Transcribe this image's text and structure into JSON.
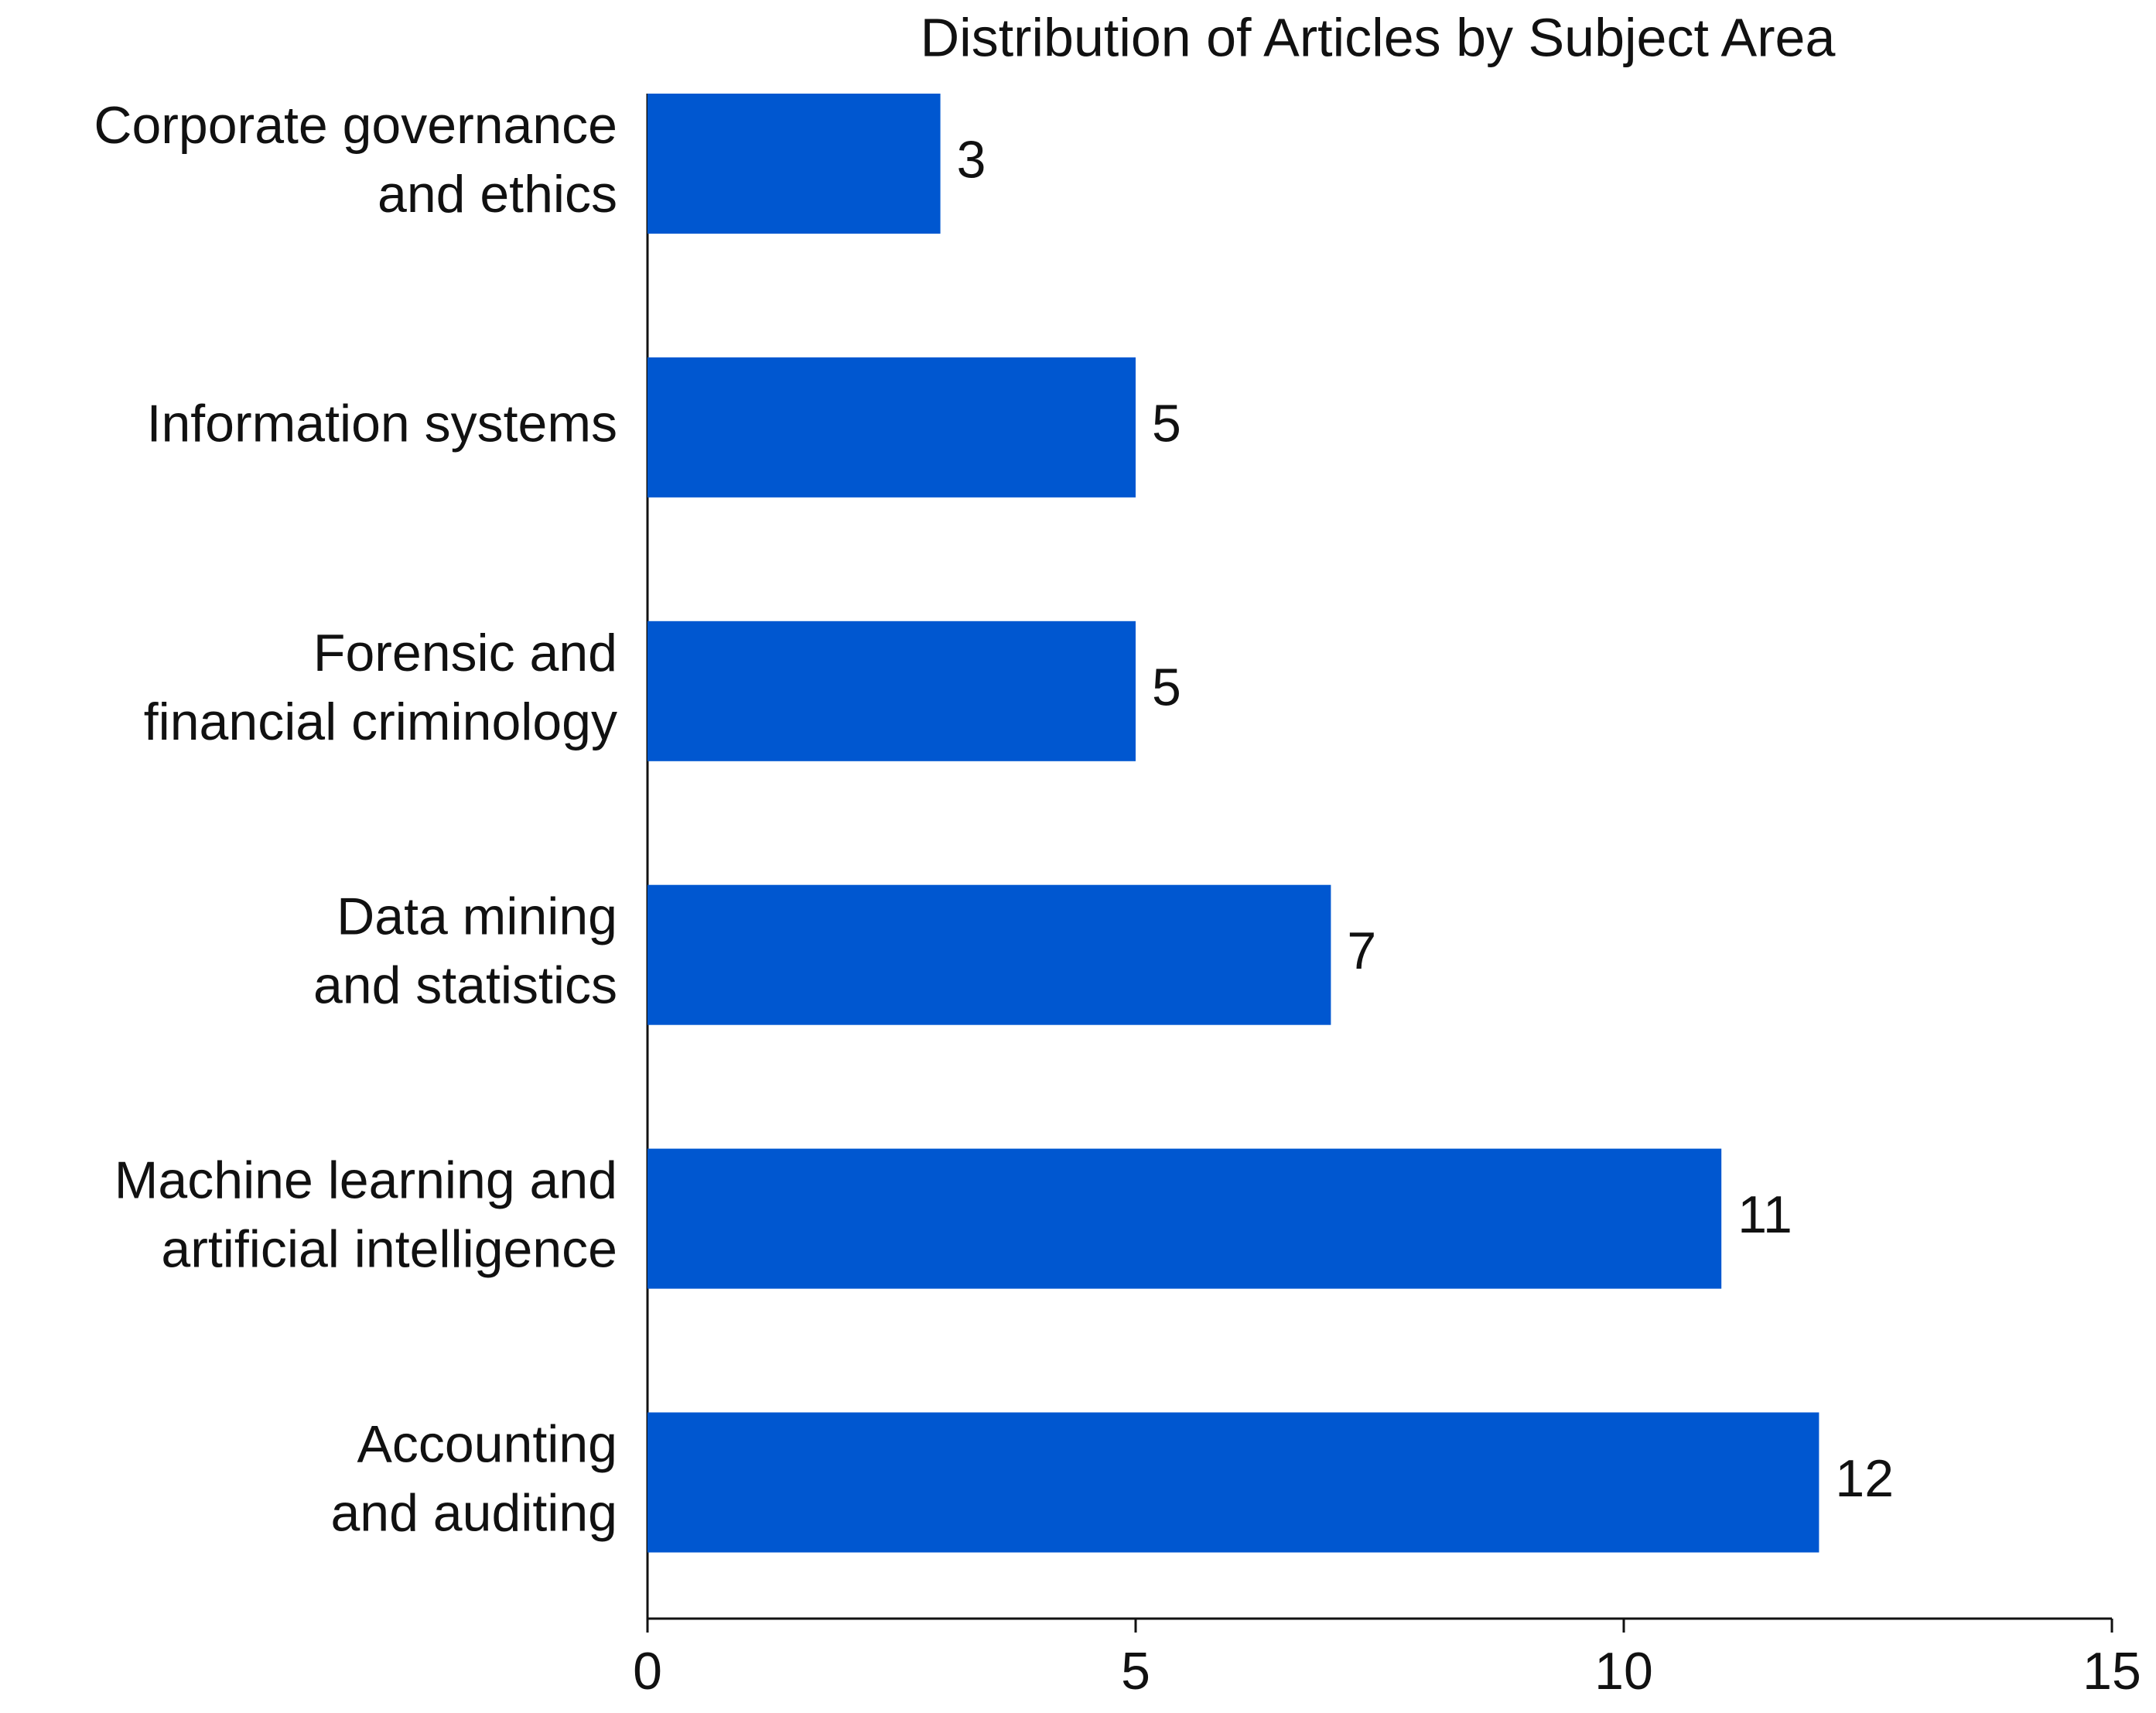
{
  "chart_data": {
    "type": "bar",
    "orientation": "horizontal",
    "title": "Distribution of Articles by Subject Area",
    "categories": [
      [
        "Corporate governance",
        "and ethics"
      ],
      [
        "Information systems"
      ],
      [
        "Forensic and",
        "financial criminology"
      ],
      [
        "Data mining",
        "and statistics"
      ],
      [
        "Machine learning and",
        "artificial intelligence"
      ],
      [
        "Accounting",
        "and auditing"
      ]
    ],
    "values": [
      3,
      5,
      5,
      7,
      11,
      12
    ],
    "color": "#0057d0",
    "xlim": [
      0,
      15
    ],
    "xticks": [
      0,
      5,
      10,
      15
    ],
    "grid": false
  }
}
